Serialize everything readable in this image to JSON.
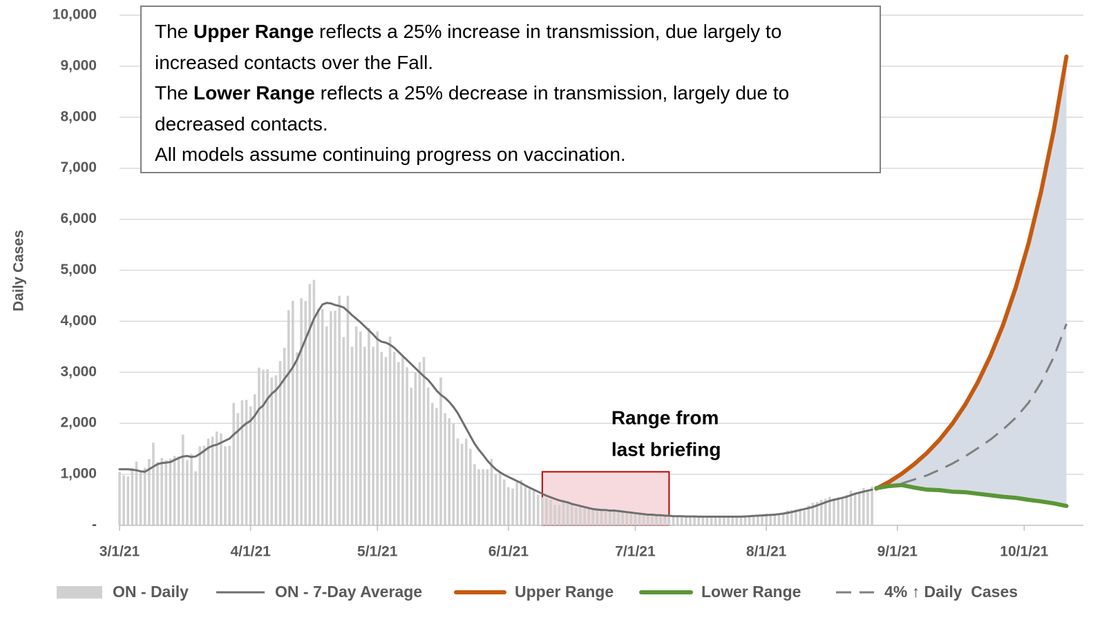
{
  "chart_data": {
    "type": "bar-line",
    "y_label": "Daily Cases",
    "note": [
      [
        "The ",
        "Upper Range",
        " reflects a 25% increase in transmission, due largely to increased contacts over the Fall."
      ],
      [
        "The ",
        "Lower Range",
        " reflects a 25% decrease in transmission, largely due to decreased contacts."
      ],
      [
        "All models assume continuing progress on vaccination."
      ]
    ],
    "range_box": {
      "label": [
        "Range from",
        "last briefing"
      ],
      "x": [
        "6/9/21",
        "7/9/21"
      ],
      "y": [
        0,
        1050
      ],
      "color": "#c00000",
      "fill": "#f6dadd"
    },
    "range_fill": "#d6dce5",
    "grid": true,
    "xlim": [
      "3/1/21",
      "10/15/21"
    ],
    "xticks": [
      "3/1/21",
      "4/1/21",
      "5/1/21",
      "6/1/21",
      "7/1/21",
      "8/1/21",
      "9/1/21",
      "10/1/21"
    ],
    "ylim": [
      0,
      10000
    ],
    "yticks": [
      {
        "value": 0,
        "label": "-"
      },
      {
        "value": 1000,
        "label": "1,000"
      },
      {
        "value": 2000,
        "label": "2,000"
      },
      {
        "value": 3000,
        "label": "3,000"
      },
      {
        "value": 4000,
        "label": "4,000"
      },
      {
        "value": 5000,
        "label": "5,000"
      },
      {
        "value": 6000,
        "label": "6,000"
      },
      {
        "value": 7000,
        "label": "7,000"
      },
      {
        "value": 8000,
        "label": "8,000"
      },
      {
        "value": 9000,
        "label": "9,000"
      },
      {
        "value": 10000,
        "label": "10,000"
      }
    ],
    "x": [
      "3/1/21",
      "3/2/21",
      "3/3/21",
      "3/4/21",
      "3/5/21",
      "3/6/21",
      "3/7/21",
      "3/8/21",
      "3/9/21",
      "3/10/21",
      "3/11/21",
      "3/12/21",
      "3/13/21",
      "3/14/21",
      "3/15/21",
      "3/16/21",
      "3/17/21",
      "3/18/21",
      "3/19/21",
      "3/20/21",
      "3/21/21",
      "3/22/21",
      "3/23/21",
      "3/24/21",
      "3/25/21",
      "3/26/21",
      "3/27/21",
      "3/28/21",
      "3/29/21",
      "3/30/21",
      "3/31/21",
      "4/1/21",
      "4/2/21",
      "4/3/21",
      "4/4/21",
      "4/5/21",
      "4/6/21",
      "4/7/21",
      "4/8/21",
      "4/9/21",
      "4/10/21",
      "4/11/21",
      "4/12/21",
      "4/13/21",
      "4/14/21",
      "4/15/21",
      "4/16/21",
      "4/17/21",
      "4/18/21",
      "4/19/21",
      "4/20/21",
      "4/21/21",
      "4/22/21",
      "4/23/21",
      "4/24/21",
      "4/25/21",
      "4/26/21",
      "4/27/21",
      "4/28/21",
      "4/29/21",
      "4/30/21",
      "5/1/21",
      "5/2/21",
      "5/3/21",
      "5/4/21",
      "5/5/21",
      "5/6/21",
      "5/7/21",
      "5/8/21",
      "5/9/21",
      "5/10/21",
      "5/11/21",
      "5/12/21",
      "5/13/21",
      "5/14/21",
      "5/15/21",
      "5/16/21",
      "5/17/21",
      "5/18/21",
      "5/19/21",
      "5/20/21",
      "5/21/21",
      "5/22/21",
      "5/23/21",
      "5/24/21",
      "5/25/21",
      "5/26/21",
      "5/27/21",
      "5/28/21",
      "5/29/21",
      "5/30/21",
      "5/31/21",
      "6/1/21",
      "6/2/21",
      "6/3/21",
      "6/4/21",
      "6/5/21",
      "6/6/21",
      "6/7/21",
      "6/8/21",
      "6/9/21",
      "6/10/21",
      "6/11/21",
      "6/12/21",
      "6/13/21",
      "6/14/21",
      "6/15/21",
      "6/16/21",
      "6/17/21",
      "6/18/21",
      "6/19/21",
      "6/20/21",
      "6/21/21",
      "6/22/21",
      "6/23/21",
      "6/24/21",
      "6/25/21",
      "6/26/21",
      "6/27/21",
      "6/28/21",
      "6/29/21",
      "6/30/21",
      "7/1/21",
      "7/2/21",
      "7/3/21",
      "7/4/21",
      "7/5/21",
      "7/6/21",
      "7/7/21",
      "7/8/21",
      "7/9/21",
      "7/10/21",
      "7/11/21",
      "7/12/21",
      "7/13/21",
      "7/14/21",
      "7/15/21",
      "7/16/21",
      "7/17/21",
      "7/18/21",
      "7/19/21",
      "7/20/21",
      "7/21/21",
      "7/22/21",
      "7/23/21",
      "7/24/21",
      "7/25/21",
      "7/26/21",
      "7/27/21",
      "7/28/21",
      "7/29/21",
      "7/30/21",
      "7/31/21",
      "8/1/21",
      "8/2/21",
      "8/3/21",
      "8/4/21",
      "8/5/21",
      "8/6/21",
      "8/7/21",
      "8/8/21",
      "8/9/21",
      "8/10/21",
      "8/11/21",
      "8/12/21",
      "8/13/21",
      "8/14/21",
      "8/15/21",
      "8/16/21",
      "8/17/21",
      "8/18/21",
      "8/19/21",
      "8/20/21",
      "8/21/21",
      "8/22/21",
      "8/23/21",
      "8/24/21",
      "8/25/21",
      "8/26/21"
    ],
    "series": [
      {
        "name": "ON - Daily",
        "type": "bar",
        "color": "#d0d0d0",
        "values": [
          1050,
          980,
          960,
          1120,
          1250,
          1060,
          1130,
          1300,
          1620,
          1240,
          1320,
          1280,
          1310,
          1360,
          1350,
          1780,
          1280,
          1400,
          1060,
          1550,
          1560,
          1700,
          1740,
          1840,
          1800,
          1550,
          1560,
          2400,
          2200,
          2450,
          2460,
          2330,
          2570,
          3090,
          3050,
          3060,
          2900,
          2940,
          3220,
          3480,
          4220,
          4400,
          3390,
          4450,
          4400,
          4730,
          4810,
          4250,
          4240,
          3900,
          4200,
          4210,
          4500,
          3690,
          4500,
          3500,
          3900,
          3800,
          3500,
          3870,
          3500,
          3800,
          3400,
          3300,
          3700,
          3400,
          3200,
          3300,
          3100,
          2700,
          3000,
          3200,
          3300,
          2700,
          2400,
          2300,
          2900,
          2200,
          2100,
          2000,
          1700,
          1600,
          1700,
          1500,
          1200,
          1100,
          1100,
          1100,
          1300,
          1000,
          1050,
          900,
          750,
          720,
          850,
          890,
          750,
          720,
          700,
          600,
          550,
          530,
          500,
          400,
          400,
          500,
          450,
          410,
          350,
          380,
          360,
          330,
          300,
          290,
          280,
          270,
          300,
          320,
          290,
          280,
          260,
          250,
          250,
          220,
          230,
          220,
          210,
          180,
          200,
          190,
          180,
          170,
          180,
          160,
          170,
          190,
          170,
          160,
          180,
          150,
          160,
          170,
          160,
          170,
          180,
          160,
          170,
          150,
          180,
          190,
          200,
          210,
          190,
          230,
          220,
          230,
          220,
          250,
          290,
          300,
          310,
          330,
          290,
          390,
          440,
          460,
          500,
          520,
          560,
          530,
          550,
          520,
          600,
          680,
          640,
          660,
          730,
          700,
          760
        ]
      },
      {
        "name": "ON - 7-Day Average",
        "type": "line",
        "color": "#6f6f6f",
        "values": [
          1100,
          1100,
          1100,
          1090,
          1080,
          1060,
          1050,
          1100,
          1150,
          1200,
          1220,
          1230,
          1240,
          1280,
          1320,
          1350,
          1360,
          1340,
          1350,
          1400,
          1460,
          1520,
          1560,
          1580,
          1620,
          1660,
          1700,
          1780,
          1850,
          1930,
          2000,
          2050,
          2150,
          2280,
          2350,
          2480,
          2580,
          2650,
          2750,
          2870,
          2980,
          3100,
          3250,
          3450,
          3650,
          3850,
          4050,
          4200,
          4330,
          4360,
          4350,
          4320,
          4300,
          4270,
          4200,
          4120,
          4050,
          3980,
          3900,
          3820,
          3740,
          3650,
          3600,
          3580,
          3540,
          3480,
          3400,
          3320,
          3240,
          3160,
          3080,
          3000,
          2920,
          2850,
          2750,
          2640,
          2560,
          2500,
          2420,
          2320,
          2200,
          2050,
          1900,
          1750,
          1600,
          1480,
          1380,
          1270,
          1180,
          1100,
          1040,
          990,
          950,
          910,
          870,
          830,
          780,
          740,
          700,
          660,
          620,
          580,
          550,
          520,
          490,
          470,
          450,
          420,
          400,
          380,
          360,
          340,
          320,
          310,
          300,
          300,
          290,
          290,
          280,
          270,
          260,
          250,
          240,
          230,
          220,
          210,
          210,
          200,
          200,
          190,
          190,
          180,
          180,
          180,
          175,
          175,
          175,
          170,
          170,
          170,
          170,
          170,
          170,
          170,
          170,
          170,
          170,
          170,
          175,
          180,
          185,
          190,
          195,
          200,
          205,
          210,
          220,
          230,
          245,
          260,
          280,
          300,
          320,
          340,
          360,
          390,
          420,
          450,
          480,
          500,
          520,
          540,
          560,
          590,
          620,
          640,
          660,
          680,
          700
        ]
      },
      {
        "name": "Upper Range",
        "type": "line",
        "color": "#c55a11",
        "width": 6,
        "x": [
          "8/27/21",
          "8/30/21",
          "9/2/21",
          "9/5/21",
          "9/8/21",
          "9/11/21",
          "9/14/21",
          "9/17/21",
          "9/20/21",
          "9/23/21",
          "9/26/21",
          "9/29/21",
          "10/2/21",
          "10/5/21",
          "10/8/21",
          "10/11/21"
        ],
        "values": [
          720,
          850,
          1010,
          1200,
          1420,
          1680,
          1990,
          2360,
          2800,
          3320,
          3930,
          4660,
          5520,
          6540,
          7750,
          9190
        ]
      },
      {
        "name": "Lower Range",
        "type": "line",
        "color": "#5b9636",
        "width": 6,
        "x": [
          "8/27/21",
          "8/30/21",
          "9/2/21",
          "9/5/21",
          "9/8/21",
          "9/11/21",
          "9/14/21",
          "9/17/21",
          "9/20/21",
          "9/23/21",
          "9/26/21",
          "9/29/21",
          "10/2/21",
          "10/5/21",
          "10/8/21",
          "10/11/21"
        ],
        "values": [
          730,
          770,
          790,
          740,
          700,
          690,
          660,
          650,
          620,
          590,
          560,
          540,
          500,
          470,
          430,
          380
        ]
      },
      {
        "name": "4% ↑ Daily  Cases",
        "type": "line",
        "color": "#7f7f7f",
        "dashed": true,
        "x": [
          "8/27/21",
          "8/30/21",
          "9/2/21",
          "9/5/21",
          "9/8/21",
          "9/11/21",
          "9/14/21",
          "9/17/21",
          "9/20/21",
          "9/23/21",
          "9/26/21",
          "9/29/21",
          "10/2/21",
          "10/5/21",
          "10/8/21",
          "10/11/21"
        ],
        "values": [
          null,
          null,
          820,
          900,
          980,
          1090,
          1210,
          1350,
          1510,
          1680,
          1880,
          2110,
          2400,
          2800,
          3300,
          3950
        ]
      }
    ]
  }
}
